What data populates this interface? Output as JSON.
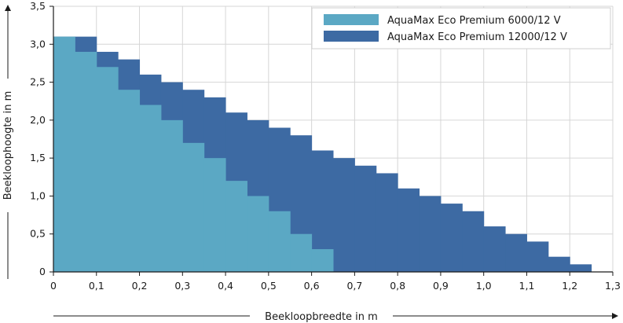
{
  "chart_data": {
    "type": "area",
    "step": true,
    "xlabel": "Beekloopbreedte in m",
    "ylabel": "Beekloophoogte in m",
    "xlim": [
      0,
      1.3
    ],
    "ylim": [
      0,
      3.5
    ],
    "xticks": [
      0,
      0.1,
      0.2,
      0.3,
      0.4,
      0.5,
      0.6,
      0.7,
      0.8,
      0.9,
      1.0,
      1.1,
      1.2,
      1.3
    ],
    "xtick_labels": [
      "0",
      "0,1",
      "0,2",
      "0,3",
      "0,4",
      "0,5",
      "0,6",
      "0,7",
      "0,8",
      "0,9",
      "1,0",
      "1,1",
      "1,2",
      "1,3"
    ],
    "yticks": [
      0,
      0.5,
      1.0,
      1.5,
      2.0,
      2.5,
      3.0,
      3.5
    ],
    "ytick_labels": [
      "0",
      "0,5",
      "1,0",
      "1,5",
      "2,0",
      "2,5",
      "3,0",
      "3,5"
    ],
    "grid": true,
    "legend_position": "top-right",
    "bin_width": 0.05,
    "series": [
      {
        "name": "AquaMax Eco Premium 12000/12 V",
        "color": "#3d6aa3",
        "x_start": [
          0,
          0.05,
          0.1,
          0.15,
          0.2,
          0.25,
          0.3,
          0.35,
          0.4,
          0.45,
          0.5,
          0.55,
          0.6,
          0.65,
          0.7,
          0.75,
          0.8,
          0.85,
          0.9,
          0.95,
          1.0,
          1.05,
          1.1,
          1.15,
          1.2
        ],
        "values": [
          3.1,
          3.1,
          2.9,
          2.8,
          2.6,
          2.5,
          2.4,
          2.3,
          2.1,
          2.0,
          1.9,
          1.8,
          1.6,
          1.5,
          1.4,
          1.3,
          1.1,
          1.0,
          0.9,
          0.8,
          0.6,
          0.5,
          0.4,
          0.2,
          0.1
        ]
      },
      {
        "name": "AquaMax Eco Premium 6000/12 V",
        "color": "#5ba8c4",
        "x_start": [
          0,
          0.05,
          0.1,
          0.15,
          0.2,
          0.25,
          0.3,
          0.35,
          0.4,
          0.45,
          0.5,
          0.55,
          0.6
        ],
        "values": [
          3.1,
          2.9,
          2.7,
          2.4,
          2.2,
          2.0,
          1.7,
          1.5,
          1.2,
          1.0,
          0.8,
          0.5,
          0.3
        ]
      }
    ],
    "legend": [
      {
        "label": "AquaMax Eco Premium 6000/12 V",
        "color": "#5ba8c4"
      },
      {
        "label": "AquaMax Eco Premium 12000/12 V",
        "color": "#3d6aa3"
      }
    ]
  }
}
